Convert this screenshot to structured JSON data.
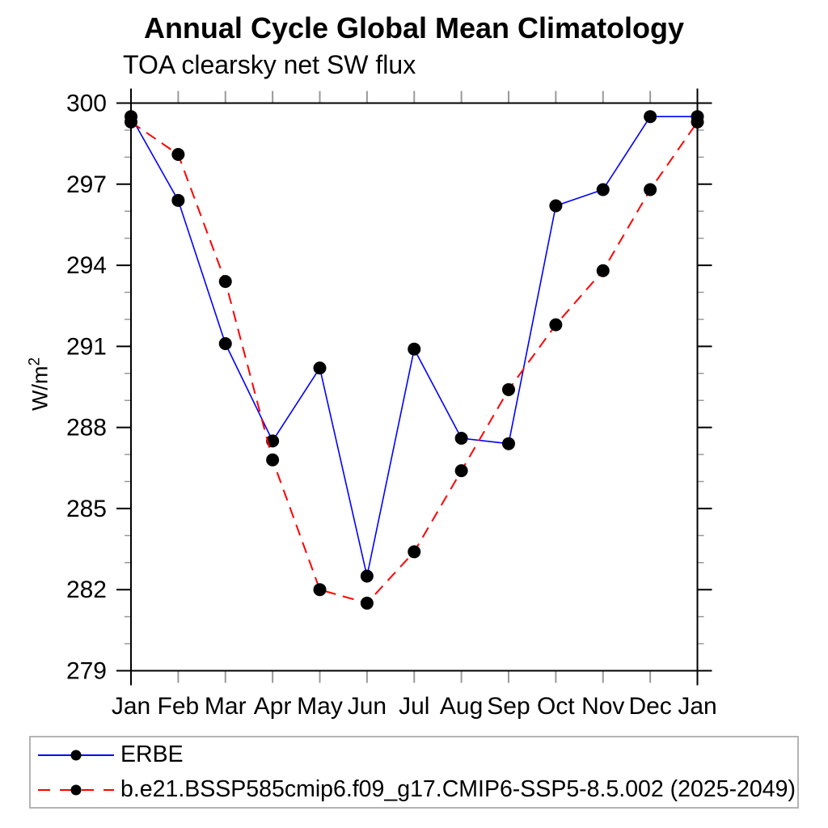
{
  "header": {
    "title": "Annual Cycle Global Mean Climatology",
    "subtitle": "TOA clearsky net SW flux"
  },
  "axes": {
    "y_label_base": "W/m",
    "y_label_sup": "2"
  },
  "chart_data": {
    "type": "line",
    "title": "Annual Cycle Global Mean Climatology",
    "subtitle": "TOA clearsky net SW flux",
    "xlabel": "",
    "ylabel": "W/m^2",
    "categories": [
      "Jan",
      "Feb",
      "Mar",
      "Apr",
      "May",
      "Jun",
      "Jul",
      "Aug",
      "Sep",
      "Oct",
      "Nov",
      "Dec",
      "Jan"
    ],
    "ylim": [
      279,
      300
    ],
    "yticks_major": [
      279,
      282,
      285,
      288,
      291,
      294,
      297,
      300
    ],
    "minor_tick_step": 1,
    "grid": false,
    "legend_position": "bottom-left-box",
    "frame_color": "#000000",
    "minor_tick_color": "#999999",
    "series": [
      {
        "id": "erbe",
        "name": "ERBE",
        "color": "#0000ff",
        "style": "solid",
        "marker": "circle",
        "marker_color": "#000000",
        "values": [
          299.5,
          296.4,
          291.1,
          287.5,
          290.2,
          282.5,
          290.9,
          287.6,
          287.4,
          296.2,
          296.8,
          299.5,
          299.5
        ]
      },
      {
        "id": "model",
        "name": "b.e21.BSSP585cmip6.f09_g17.CMIP6-SSP5-8.5.002 (2025-2049)",
        "color": "#ff0000",
        "style": "dashed",
        "marker": "circle",
        "marker_color": "#000000",
        "values": [
          299.3,
          298.1,
          293.4,
          286.8,
          282.0,
          281.5,
          283.4,
          286.4,
          289.4,
          291.8,
          293.8,
          296.8,
          299.3
        ]
      }
    ]
  },
  "legend": {
    "marker_color": "#000000",
    "items": [
      {
        "label": "ERBE",
        "color": "#0000ff",
        "style": "solid"
      },
      {
        "label": "b.e21.BSSP585cmip6.f09_g17.CMIP6-SSP5-8.5.002 (2025-2049)",
        "color": "#ff0000",
        "style": "dashed"
      }
    ]
  }
}
